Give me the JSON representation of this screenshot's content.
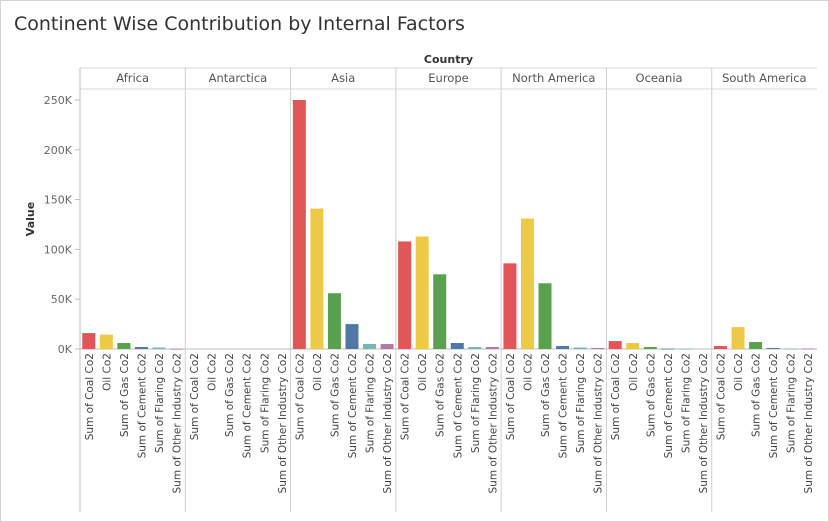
{
  "title": "Continent Wise Contribution by Internal Factors",
  "chart_data": {
    "type": "bar",
    "column_header": "Country",
    "ylabel": "Value",
    "ylim": [
      0,
      260000
    ],
    "y_ticks": [
      0,
      50000,
      100000,
      150000,
      200000,
      250000
    ],
    "y_tick_labels": [
      "0K",
      "50K",
      "100K",
      "150K",
      "200K",
      "250K"
    ],
    "grid": false,
    "categories": [
      "Sum of Coal Co2",
      "Oil Co2",
      "Sum of Gas Co2",
      "Sum of Cement Co2",
      "Sum of Flaring Co2",
      "Sum of Other Industry Co2"
    ],
    "colors": [
      "#e15759",
      "#edc948",
      "#59a14f",
      "#4e79a7",
      "#76b7b2",
      "#b07aa1"
    ],
    "panels": [
      {
        "name": "Africa",
        "values": [
          16000,
          14500,
          6000,
          2000,
          1500,
          200
        ]
      },
      {
        "name": "Antarctica",
        "values": [
          0,
          0,
          0,
          0,
          0,
          0
        ]
      },
      {
        "name": "Asia",
        "values": [
          250000,
          141000,
          56000,
          25000,
          5000,
          5000
        ]
      },
      {
        "name": "Europe",
        "values": [
          108000,
          113000,
          75000,
          6000,
          2000,
          2000
        ]
      },
      {
        "name": "North America",
        "values": [
          86000,
          131000,
          66000,
          3000,
          1500,
          1000
        ]
      },
      {
        "name": "Oceania",
        "values": [
          8000,
          6000,
          2000,
          300,
          300,
          0
        ]
      },
      {
        "name": "South America",
        "values": [
          3000,
          22000,
          7000,
          1000,
          500,
          500
        ]
      }
    ]
  }
}
